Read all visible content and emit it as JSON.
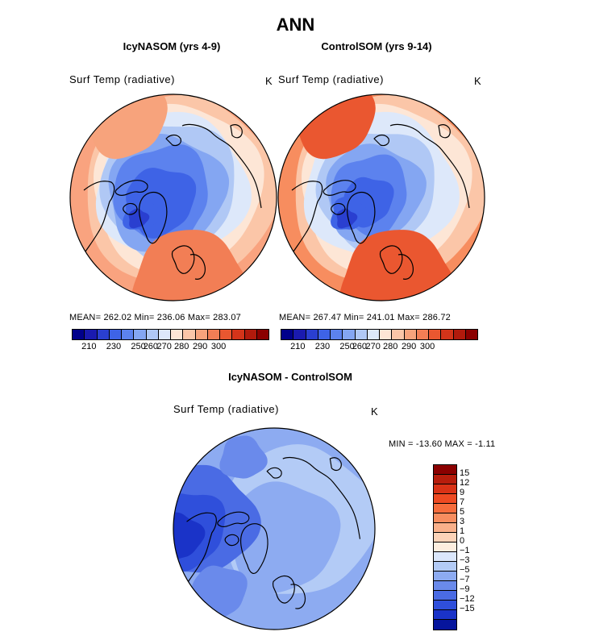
{
  "title": "ANN",
  "colors": {
    "abs_palette": [
      "#00008b",
      "#1a1aaf",
      "#2a3fd0",
      "#3e63e6",
      "#5c82ee",
      "#84a6f2",
      "#b0c8f5",
      "#dde8fa",
      "#fde6d6",
      "#fbc6a8",
      "#f7a37c",
      "#f27e55",
      "#ea5730",
      "#d4341a",
      "#b21a0c",
      "#8b0000"
    ],
    "diff_palette": [
      "#8b0000",
      "#b71d0c",
      "#d93216",
      "#ee4a22",
      "#f66c3c",
      "#f78d5f",
      "#f9b08a",
      "#fcd3b8",
      "#fdeedf",
      "#dbe7fb",
      "#b3cbf6",
      "#8dabf1",
      "#6a8aeb",
      "#4a6be4",
      "#2f4fdb",
      "#1a33c8",
      "#06159d"
    ]
  },
  "panels": [
    {
      "title": "IcyNASOM (yrs 4-9)",
      "variable": "Surf Temp (radiative)",
      "unit": "K",
      "stats": "MEAN= 262.02   Min= 236.06   Max= 283.07",
      "colorbar_ticks": [
        "210",
        "230",
        "250",
        "260",
        "270",
        "280",
        "290",
        "300"
      ],
      "map": {
        "projection": "polar-stereographic-north",
        "field": "surface-temperature",
        "variant": "icy"
      }
    },
    {
      "title": "ControlSOM (yrs 9-14)",
      "variable": "Surf Temp (radiative)",
      "unit": "K",
      "stats": "MEAN= 267.47   Min= 241.01   Max= 286.72",
      "colorbar_ticks": [
        "210",
        "230",
        "250",
        "260",
        "270",
        "280",
        "290",
        "300"
      ],
      "map": {
        "projection": "polar-stereographic-north",
        "field": "surface-temperature",
        "variant": "control"
      }
    }
  ],
  "difference": {
    "title": "IcyNASOM - ControlSOM",
    "variable": "Surf Temp (radiative)",
    "unit": "K",
    "stats": "MIN = -13.60 MAX =  -1.11",
    "colorbar_ticks": [
      "15",
      "12",
      "9",
      "7",
      "5",
      "3",
      "1",
      "0",
      "−1",
      "−3",
      "−5",
      "−7",
      "−9",
      "−12",
      "−15"
    ],
    "map": {
      "projection": "polar-stereographic-north",
      "field": "surface-temperature-difference"
    }
  }
}
